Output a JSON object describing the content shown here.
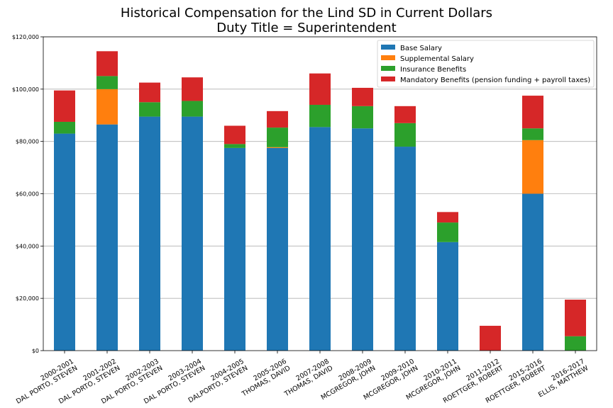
{
  "title": {
    "line1": "Historical Compensation for the Lind SD in Current Dollars",
    "line2": "Duty Title = Superintendent"
  },
  "colors": {
    "base": "#1f77b4",
    "supplemental": "#ff7f0e",
    "insurance": "#2ca02c",
    "mandatory": "#d62728",
    "grid": "#b0b0b0"
  },
  "chart_data": {
    "type": "bar",
    "stacked": true,
    "title": "Historical Compensation for the Lind SD in Current Dollars",
    "subtitle": "Duty Title = Superintendent",
    "xlabel": "",
    "ylabel": "",
    "ylim": [
      0,
      120000
    ],
    "yticks": [
      0,
      20000,
      40000,
      60000,
      80000,
      100000,
      120000
    ],
    "ytick_labels": [
      "$0",
      "$20,000",
      "$40,000",
      "$60,000",
      "$80,000",
      "$100,000",
      "$120,000"
    ],
    "grid": "y",
    "legend_position": "top-right",
    "categories": [
      [
        "2000-2001",
        "DAL PORTO, STEVEN"
      ],
      [
        "2001-2002",
        "DAL PORTO, STEVEN"
      ],
      [
        "2002-2003",
        "DAL PORTO, STEVEN"
      ],
      [
        "2003-2004",
        "DAL PORTO, STEVEN"
      ],
      [
        "2004-2005",
        "DALPORTO, STEVEN"
      ],
      [
        "2005-2006",
        "THOMAS, DAVID"
      ],
      [
        "2007-2008",
        "THOMAS, DAVID"
      ],
      [
        "2008-2009",
        "MCGREGOR, JOHN"
      ],
      [
        "2009-2010",
        "MCGREGOR, JOHN"
      ],
      [
        "2010-2011",
        "MCGREGOR, JOHN"
      ],
      [
        "2011-2012",
        "ROETTGER, ROBERT"
      ],
      [
        "2015-2016",
        "ROETTGER, ROBERT"
      ],
      [
        "2016-2017",
        "ELLIS, MATTHEW"
      ]
    ],
    "series": [
      {
        "name": "Base Salary",
        "color": "#1f77b4",
        "values": [
          83000,
          86500,
          89500,
          89500,
          77500,
          77500,
          85500,
          85000,
          78000,
          41500,
          0,
          60000,
          0
        ]
      },
      {
        "name": "Supplemental Salary",
        "color": "#ff7f0e",
        "values": [
          0,
          13500,
          0,
          0,
          0,
          300,
          0,
          0,
          0,
          0,
          0,
          20500,
          0
        ]
      },
      {
        "name": "Insurance Benefits",
        "color": "#2ca02c",
        "values": [
          4500,
          5000,
          5500,
          6000,
          1500,
          7500,
          8500,
          8500,
          9000,
          7500,
          0,
          4500,
          5500
        ]
      },
      {
        "name": "Mandatory Benefits (pension funding + payroll taxes)",
        "color": "#d62728",
        "values": [
          12000,
          9500,
          7500,
          9000,
          7000,
          6300,
          12000,
          7000,
          6500,
          4000,
          9500,
          12500,
          14000
        ]
      }
    ]
  }
}
